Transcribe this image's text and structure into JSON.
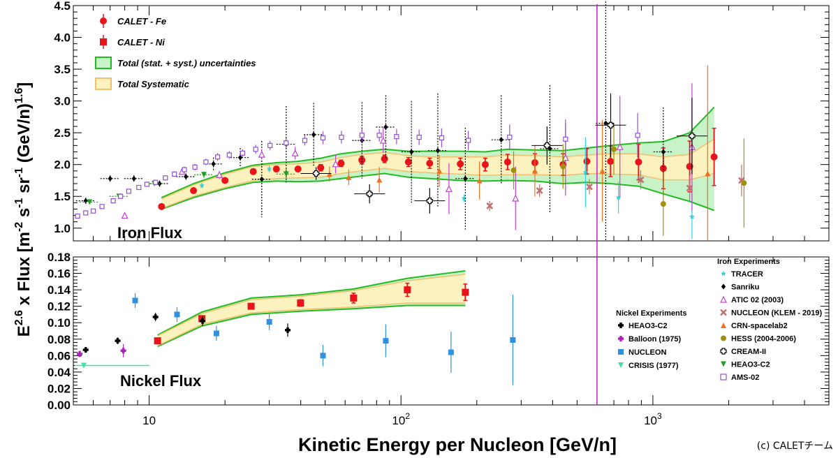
{
  "chart_data": {
    "type": "scatter",
    "xlabel": "Kinetic Energy per Nucleon [GeV/n]",
    "ylabel": "E^2.6 x Flux [m^-2 s^-1 sr^-1 (GeV/n)^1.6]",
    "ylabel_parts": [
      "E",
      "2.6",
      " x Flux [m",
      "-2",
      " s",
      "-1",
      " sr",
      "-1",
      " (GeV/n)",
      "1.6",
      "]"
    ],
    "xscale": "log",
    "xlim": [
      5,
      5000
    ],
    "x_tick_labels": [
      {
        "x": 10,
        "base": "10",
        "exp": ""
      },
      {
        "x": 100,
        "base": "10",
        "exp": "2"
      },
      {
        "x": 1000,
        "base": "10",
        "exp": "3"
      }
    ],
    "credit": "(c) CALETチーム",
    "panels": {
      "iron": {
        "label": "Iron Flux",
        "ylim": [
          0.8,
          4.5
        ],
        "yticks": [
          1.0,
          1.5,
          2.0,
          2.5,
          3.0,
          3.5,
          4.0,
          4.5
        ],
        "ytick_labels": [
          "1.0",
          "1.5",
          "2.0",
          "2.5",
          "3.0",
          "3.5",
          "4.0",
          "4.5"
        ]
      },
      "nickel": {
        "label": "Nickel Flux",
        "ylim": [
          0,
          0.18
        ],
        "yticks": [
          0,
          0.02,
          0.04,
          0.06,
          0.08,
          0.1,
          0.12,
          0.14,
          0.16,
          0.18
        ],
        "ytick_labels": [
          "0.00",
          "0.02",
          "0.04",
          "0.06",
          "0.08",
          "0.10",
          "0.12",
          "0.14",
          "0.16",
          "0.18"
        ]
      }
    },
    "legend_main": [
      {
        "label": "CALET - Fe",
        "marker": "circle",
        "color": "#e8141b"
      },
      {
        "label": "CALET - Ni",
        "marker": "square",
        "color": "#e8141b"
      },
      {
        "label": "Total (stat. + syst.) uncertainties",
        "marker": "box",
        "color": "#22bb22",
        "fill": "#c8f2c8"
      },
      {
        "label": "Total Systematic",
        "marker": "box",
        "color": "#f0c070",
        "fill": "#fbf2c0"
      }
    ],
    "legend_nickel_title": "Nickel Experiments",
    "legend_nickel": [
      {
        "label": "HEAO3-C2",
        "marker": "cross",
        "color": "#000000"
      },
      {
        "label": "Balloon (1975)",
        "marker": "cross",
        "color": "#b020c0"
      },
      {
        "label": "NUCLEON",
        "marker": "square",
        "color": "#3090e0"
      },
      {
        "label": "CRISIS (1977)",
        "marker": "tri_down",
        "color": "#40e0a0"
      }
    ],
    "legend_iron_title": "Iron Experiments",
    "legend_iron": [
      {
        "label": "TRACER",
        "marker": "star",
        "color": "#30d0e0"
      },
      {
        "label": "Sanriku",
        "marker": "diamond",
        "color": "#000000"
      },
      {
        "label": "ATIC 02 (2003)",
        "marker": "tri_up_open",
        "color": "#c040d0"
      },
      {
        "label": "NUCLEON (KLEM - 2019)",
        "marker": "x",
        "color": "#c07070"
      },
      {
        "label": "CRN-spacelab2",
        "marker": "tri_up",
        "color": "#f07020"
      },
      {
        "label": "HESS (2004-2006)",
        "marker": "circle",
        "color": "#a09010"
      },
      {
        "label": "CREAM-II",
        "marker": "cross_open",
        "color": "#000000"
      },
      {
        "label": "HEAO3-C2",
        "marker": "tri_down",
        "color": "#20a020"
      },
      {
        "label": "AMS-02",
        "marker": "square_open",
        "color": "#9050d0"
      }
    ],
    "series": [
      {
        "name": "CALET - Fe",
        "panel": "iron",
        "marker": "circle",
        "color": "#e8141b",
        "x": [
          11.2,
          15.0,
          20.0,
          25.9,
          32.0,
          39.0,
          48.0,
          57.8,
          69.9,
          86.0,
          107.0,
          130.0,
          172.0,
          216.0,
          265.0,
          340.0,
          440.0,
          547.0,
          679.0,
          877.0,
          1100.0,
          1400.0,
          1750.0
        ],
        "y": [
          1.34,
          1.59,
          1.75,
          1.89,
          1.93,
          1.93,
          1.95,
          2.02,
          2.07,
          2.09,
          2.04,
          2.02,
          2.01,
          2.0,
          2.04,
          2.03,
          2.0,
          2.05,
          2.05,
          2.04,
          1.94,
          1.97,
          2.12
        ],
        "err": [
          0.03,
          0.03,
          0.03,
          0.04,
          0.04,
          0.04,
          0.05,
          0.05,
          0.06,
          0.06,
          0.07,
          0.08,
          0.09,
          0.1,
          0.12,
          0.14,
          0.17,
          0.2,
          0.24,
          0.28,
          0.32,
          0.4,
          0.45
        ]
      },
      {
        "name": "CALET - Ni",
        "panel": "nickel",
        "marker": "square",
        "color": "#e8141b",
        "x": [
          10.8,
          16.2,
          25.4,
          39.9,
          64.8,
          106.0,
          180.0
        ],
        "y": [
          0.078,
          0.105,
          0.12,
          0.124,
          0.13,
          0.14,
          0.137
        ],
        "err": [
          0.002,
          0.003,
          0.003,
          0.004,
          0.006,
          0.008,
          0.01
        ]
      },
      {
        "name": "TRACER",
        "panel": "iron",
        "marker": "star",
        "color": "#30d0e0",
        "x": [
          16.2,
          30.0,
          178.0,
          540.0,
          730.0,
          1430.0
        ],
        "y": [
          1.67,
          1.93,
          1.47,
          1.88,
          1.48,
          1.18
        ],
        "err": [
          0.04,
          0.05,
          0.06,
          0.55,
          0.25,
          0.35
        ]
      },
      {
        "name": "Sanriku",
        "panel": "iron",
        "marker": "diamond",
        "color": "#000000",
        "x": [
          5.6,
          7.0,
          8.7,
          11.0,
          14.0,
          18.0,
          23.0,
          28.0,
          35.0,
          45.0,
          70.0,
          87.0,
          110.0,
          140.0,
          180.0,
          250.0,
          390.0,
          650.0,
          1100.0
        ],
        "y": [
          1.43,
          1.78,
          1.78,
          1.7,
          1.81,
          2.01,
          2.11,
          1.77,
          2.32,
          2.47,
          2.38,
          2.59,
          2.2,
          2.22,
          1.78,
          2.39,
          2.25,
          2.65,
          2.2
        ],
        "err": [
          0.05,
          0.05,
          0.05,
          0.05,
          0.05,
          0.1,
          0.15,
          0.6,
          0.6,
          0.5,
          0.6,
          0.5,
          0.8,
          0.9,
          0.8,
          0.7,
          1.0,
          2.0,
          0.7
        ]
      },
      {
        "name": "ATIC 02 (2003)",
        "panel": "iron",
        "marker": "tri_up_open",
        "color": "#c040d0",
        "x": [
          8.0,
          13.5,
          19.0,
          28.0,
          38.0,
          55.0,
          85.0,
          155.0,
          285.0,
          450.0,
          740.0,
          1430.0
        ],
        "y": [
          1.2,
          1.89,
          1.84,
          2.16,
          2.18,
          2.01,
          2.38,
          1.62,
          1.47,
          2.11,
          2.28,
          2.28
        ],
        "err": [
          0.03,
          0.05,
          0.06,
          0.08,
          0.1,
          0.15,
          0.2,
          0.4,
          0.5,
          0.6,
          0.8,
          1.0
        ]
      },
      {
        "name": "NUCLEON (KLEM - 2019)",
        "panel": "iron",
        "marker": "x",
        "color": "#c07070",
        "x": [
          225.0,
          355.0,
          560.0,
          895.0,
          1400.0,
          2250.0
        ],
        "y": [
          1.35,
          1.59,
          1.65,
          1.76,
          1.63,
          1.75
        ],
        "err": [
          0.08,
          0.1,
          0.12,
          0.15,
          0.2,
          0.25
        ]
      },
      {
        "name": "CRN-spacelab2",
        "panel": "iron",
        "marker": "tri_up",
        "color": "#f07020",
        "x": [
          52.0,
          62.0,
          82.0,
          142.0,
          205.0,
          340.0,
          630.0,
          1650.0
        ],
        "y": [
          1.85,
          1.8,
          1.76,
          1.9,
          1.75,
          1.9,
          1.9,
          1.86
        ],
        "err": [
          0.12,
          0.12,
          0.2,
          0.25,
          0.3,
          0.4,
          0.8,
          1.7
        ]
      },
      {
        "name": "HESS (2004-2006)",
        "panel": "iron",
        "marker": "circle",
        "color": "#a09010",
        "x": [
          280.0,
          440.0,
          700.0,
          1100.0,
          2300.0
        ],
        "y": [
          1.91,
          1.97,
          2.24,
          1.38,
          1.71
        ],
        "err": [
          0.3,
          0.35,
          0.4,
          0.5,
          0.7
        ]
      },
      {
        "name": "CREAM-II",
        "panel": "iron",
        "marker": "cross_open",
        "color": "#000000",
        "x": [
          46.0,
          75.0,
          130.0,
          380.0,
          680.0,
          1430.0
        ],
        "y": [
          1.86,
          1.54,
          1.43,
          2.3,
          2.62,
          2.45
        ],
        "err": [
          0.1,
          0.15,
          0.2,
          0.3,
          0.5,
          0.6
        ]
      },
      {
        "name": "HEAO3-C2",
        "panel": "iron",
        "marker": "tri_down",
        "color": "#20a020",
        "x": [
          5.8,
          7.6,
          10.5,
          16.5,
          35.0
        ],
        "y": [
          1.41,
          1.5,
          1.7,
          1.84,
          1.85
        ],
        "err": [
          0.03,
          0.03,
          0.04,
          0.05,
          0.08
        ]
      },
      {
        "name": "AMS-02",
        "panel": "iron",
        "marker": "square_open",
        "color": "#9050d0",
        "x": [
          5.2,
          5.6,
          6.0,
          6.5,
          7.2,
          7.7,
          8.3,
          9.1,
          9.8,
          10.6,
          11.6,
          12.6,
          13.8,
          15.2,
          16.8,
          18.7,
          20.8,
          23.5,
          26.5,
          30.2,
          35.0,
          41.5,
          49.0,
          58.0,
          70.0,
          82.0,
          96.0,
          118.0,
          145.0,
          185.0,
          270.0,
          450.0,
          870.0
        ],
        "y": [
          1.19,
          1.24,
          1.27,
          1.34,
          1.43,
          1.5,
          1.58,
          1.64,
          1.69,
          1.72,
          1.79,
          1.85,
          1.92,
          1.96,
          2.04,
          2.12,
          2.15,
          2.18,
          2.24,
          2.3,
          2.34,
          2.38,
          2.42,
          2.43,
          2.46,
          2.46,
          2.44,
          2.43,
          2.42,
          2.38,
          2.43,
          2.4,
          2.46
        ],
        "err": [
          0.02,
          0.02,
          0.02,
          0.03,
          0.03,
          0.03,
          0.03,
          0.03,
          0.04,
          0.04,
          0.04,
          0.04,
          0.05,
          0.05,
          0.05,
          0.06,
          0.06,
          0.06,
          0.07,
          0.07,
          0.08,
          0.08,
          0.1,
          0.1,
          0.1,
          0.1,
          0.12,
          0.12,
          0.15,
          0.15,
          0.2,
          0.25,
          0.35
        ]
      },
      {
        "name": "HEAO3-C2",
        "panel": "nickel",
        "marker": "cross",
        "color": "#000000",
        "x": [
          5.6,
          7.5,
          10.6,
          16.3,
          35.5
        ],
        "y": [
          0.067,
          0.078,
          0.107,
          0.102,
          0.091
        ],
        "err": [
          0.003,
          0.004,
          0.005,
          0.006,
          0.008
        ]
      },
      {
        "name": "Balloon (1975)",
        "panel": "nickel",
        "marker": "cross",
        "color": "#b020c0",
        "x": [
          5.3,
          7.9
        ],
        "y": [
          0.062,
          0.066
        ],
        "err": [
          0.004,
          0.008
        ]
      },
      {
        "name": "NUCLEON",
        "panel": "nickel",
        "marker": "square",
        "color": "#3090e0",
        "x": [
          8.8,
          12.9,
          18.5,
          30.0,
          49.0,
          87.0,
          158.0,
          278.0
        ],
        "y": [
          0.127,
          0.11,
          0.087,
          0.101,
          0.06,
          0.078,
          0.064,
          0.079
        ],
        "err": [
          0.009,
          0.009,
          0.009,
          0.01,
          0.013,
          0.02,
          0.025,
          0.055
        ]
      },
      {
        "name": "CRISIS (1977)",
        "panel": "nickel",
        "marker": "tri_down",
        "color": "#40e0a0",
        "x": [
          5.5
        ],
        "y": [
          0.048
        ],
        "err": [
          0.003
        ],
        "xrange": [
          5.0,
          10.0
        ]
      }
    ],
    "bands": {
      "iron_total": {
        "x": [
          11.2,
          15.0,
          20.0,
          25.9,
          32.0,
          39.0,
          48.0,
          57.8,
          69.9,
          86.0,
          107.0,
          130.0,
          172.0,
          216.0,
          265.0,
          340.0,
          440.0,
          547.0,
          679.0,
          877.0,
          1100.0,
          1400.0,
          1750.0
        ],
        "lo": [
          1.3,
          1.48,
          1.62,
          1.72,
          1.74,
          1.73,
          1.74,
          1.78,
          1.82,
          1.86,
          1.8,
          1.78,
          1.75,
          1.74,
          1.75,
          1.74,
          1.7,
          1.72,
          1.7,
          1.66,
          1.54,
          1.42,
          1.28
        ],
        "hi": [
          1.48,
          1.7,
          1.87,
          1.99,
          2.03,
          2.05,
          2.1,
          2.17,
          2.21,
          2.24,
          2.21,
          2.21,
          2.21,
          2.2,
          2.24,
          2.23,
          2.22,
          2.26,
          2.3,
          2.34,
          2.36,
          2.5,
          2.9
        ]
      },
      "iron_syst": {
        "x": [
          11.2,
          15.0,
          20.0,
          25.9,
          32.0,
          39.0,
          48.0,
          57.8,
          69.9,
          86.0,
          107.0,
          130.0,
          172.0,
          216.0,
          265.0,
          340.0,
          440.0,
          547.0,
          679.0,
          877.0,
          1100.0,
          1400.0,
          1750.0
        ],
        "lo": [
          1.31,
          1.5,
          1.64,
          1.75,
          1.78,
          1.79,
          1.8,
          1.86,
          1.9,
          1.94,
          1.89,
          1.87,
          1.85,
          1.83,
          1.84,
          1.84,
          1.83,
          1.86,
          1.85,
          1.84,
          1.76,
          1.76,
          1.86
        ],
        " hi": [],
        "hi": [
          1.46,
          1.68,
          1.85,
          1.97,
          2.0,
          2.01,
          2.04,
          2.11,
          2.16,
          2.19,
          2.14,
          2.12,
          2.12,
          2.12,
          2.15,
          2.14,
          2.12,
          2.15,
          2.17,
          2.17,
          2.12,
          2.16,
          2.4
        ]
      },
      "nickel_total": {
        "x": [
          10.8,
          16.2,
          25.4,
          39.9,
          64.8,
          106.0,
          180.0
        ],
        "lo": [
          0.071,
          0.096,
          0.11,
          0.114,
          0.117,
          0.121,
          0.121
        ],
        "hi": [
          0.085,
          0.113,
          0.13,
          0.134,
          0.141,
          0.154,
          0.163
        ]
      },
      "nickel_syst": {
        "x": [
          10.8,
          16.2,
          25.4,
          39.9,
          64.8,
          106.0,
          180.0
        ],
        "lo": [
          0.072,
          0.098,
          0.112,
          0.116,
          0.119,
          0.124,
          0.124
        ],
        "hi": [
          0.084,
          0.111,
          0.128,
          0.132,
          0.139,
          0.151,
          0.159
        ]
      }
    },
    "vertical_line": {
      "x": 600,
      "color": "#c020c0"
    }
  }
}
